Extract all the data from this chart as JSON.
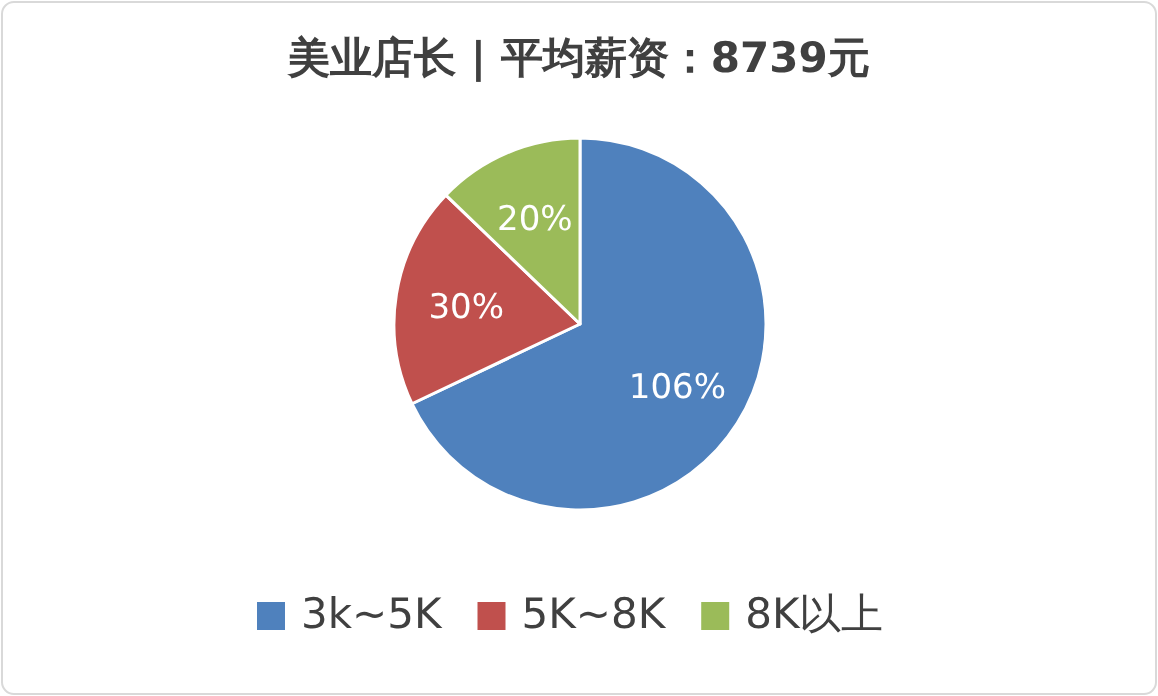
{
  "chart_data": {
    "type": "pie",
    "title": "美业店长 | 平均薪资：8739元",
    "categories": [
      "3k~5K",
      "5K~8K",
      "8K以上"
    ],
    "values": [
      106,
      30,
      20
    ],
    "colors": [
      "#4f81bd",
      "#c0504d",
      "#9bbb59"
    ],
    "value_labels": [
      "106%",
      "30%",
      "20%"
    ],
    "legend": "bottom"
  }
}
